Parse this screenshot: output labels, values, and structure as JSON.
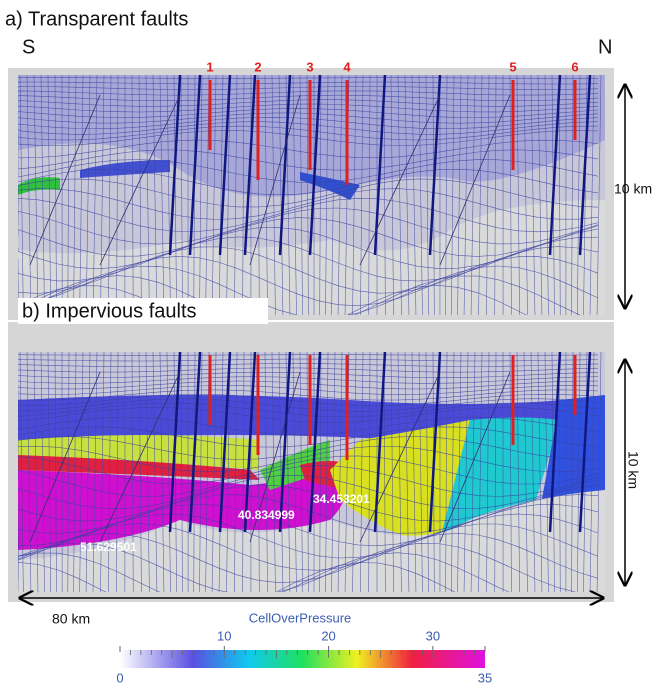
{
  "panel_a": {
    "title": "a) Transparent faults",
    "south": "S",
    "north": "N",
    "wells": [
      "1",
      "2",
      "3",
      "4",
      "5",
      "6"
    ],
    "depth_scale": "10 km"
  },
  "panel_b": {
    "title": "b) Impervious faults",
    "depth_scale": "10 km",
    "annotations": [
      "51.629501",
      "40.834999",
      "34.453201"
    ]
  },
  "length_scale": "80 km",
  "colorbar": {
    "title": "CellOverPressure",
    "ticks": [
      0,
      10,
      20,
      30,
      35
    ]
  }
}
